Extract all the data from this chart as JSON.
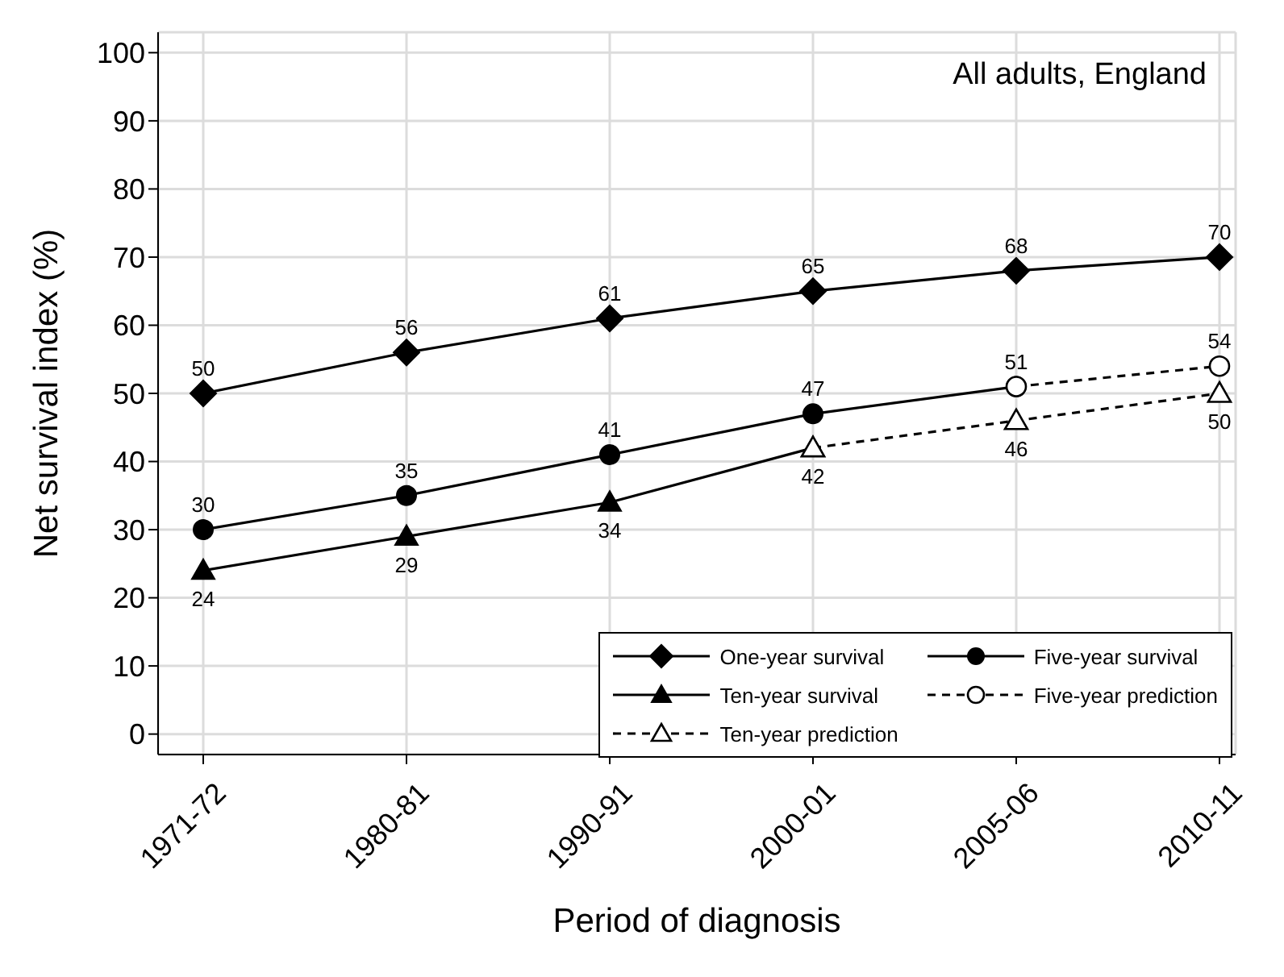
{
  "chart_data": {
    "type": "line",
    "xlabel": "Period of diagnosis",
    "ylabel": "Net survival index (%)",
    "annotations": [
      "All adults, England"
    ],
    "categories": [
      "1971-72",
      "1980-81",
      "1990-91",
      "2000-01",
      "2005-06",
      "2010-11"
    ],
    "ylim": [
      -3,
      103
    ],
    "yticks": [
      0,
      10,
      20,
      30,
      40,
      50,
      60,
      70,
      80,
      90,
      100
    ],
    "grid": true,
    "legend": "bottom right",
    "line_style": "solid",
    "series": [
      {
        "name": "One-year survival",
        "color": "#000000",
        "marker": "diamond",
        "values": [
          50,
          56,
          61,
          65,
          68,
          70
        ],
        "value_labels": [
          "50",
          "56",
          "61",
          "65",
          "68",
          "70"
        ]
      },
      {
        "name": "Five-year survival",
        "color": "#000000",
        "marker": "circle",
        "values": [
          30,
          35,
          41,
          47,
          51,
          null
        ],
        "value_labels": [
          "30",
          "35",
          "41",
          "47",
          "51",
          null
        ]
      },
      {
        "name": "Ten-year survival",
        "color": "#000000",
        "marker": "triangle",
        "values": [
          24,
          29,
          34,
          42,
          null,
          null
        ],
        "value_labels": [
          "24",
          "29",
          "34",
          null,
          null,
          null
        ]
      },
      {
        "name": "Five-year prediction",
        "color": "#000000",
        "marker": "circle",
        "line_style": "dashed",
        "values": [
          null,
          null,
          null,
          null,
          51,
          54
        ],
        "value_labels": [
          null,
          null,
          null,
          null,
          null,
          "54"
        ]
      },
      {
        "name": "Ten-year prediction",
        "color": "#000000",
        "marker": "triangle",
        "line_style": "dashed",
        "values": [
          null,
          null,
          null,
          42,
          46,
          50
        ],
        "value_labels": [
          null,
          null,
          null,
          "42",
          "46",
          "50"
        ]
      }
    ]
  }
}
